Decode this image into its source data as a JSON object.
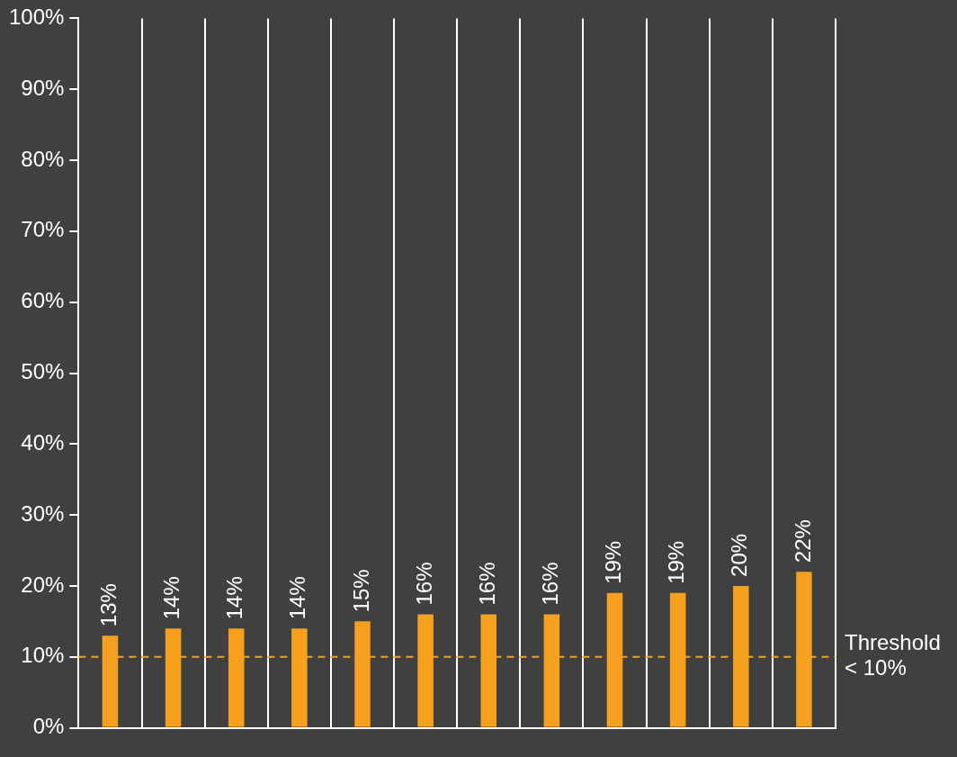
{
  "chart_data": {
    "type": "bar",
    "categories": [
      null,
      null,
      null,
      null,
      null,
      null,
      null,
      null,
      null,
      null,
      null,
      null
    ],
    "values": [
      13,
      14,
      14,
      14,
      15,
      16,
      16,
      16,
      19,
      19,
      20,
      22
    ],
    "value_labels": [
      "13%",
      "14%",
      "14%",
      "14%",
      "15%",
      "16%",
      "16%",
      "16%",
      "19%",
      "19%",
      "20%",
      "22%"
    ],
    "color": "#f5a01e",
    "ylim": [
      0,
      100
    ],
    "yticks": [
      {
        "value": 0,
        "label": "0%"
      },
      {
        "value": 10,
        "label": "10%"
      },
      {
        "value": 20,
        "label": "20%"
      },
      {
        "value": 30,
        "label": "30%"
      },
      {
        "value": 40,
        "label": "40%"
      },
      {
        "value": 50,
        "label": "50%"
      },
      {
        "value": 60,
        "label": "60%"
      },
      {
        "value": 70,
        "label": "70%"
      },
      {
        "value": 80,
        "label": "80%"
      },
      {
        "value": 90,
        "label": "90%"
      },
      {
        "value": 100,
        "label": "100%"
      }
    ],
    "grid": "x",
    "ref_lines": [
      {
        "axis": "y",
        "value": 10,
        "label": "Threshold < 10%",
        "color": "#f5a01e",
        "line_style": "dashed"
      }
    ]
  }
}
